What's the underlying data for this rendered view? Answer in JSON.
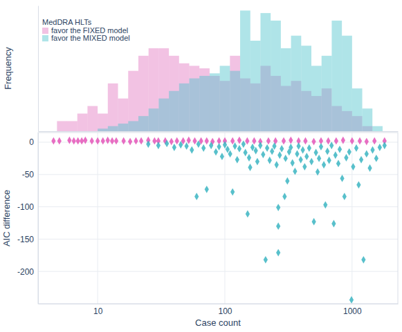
{
  "chart_data": [
    {
      "type": "histogram",
      "y_label": "Frequency",
      "legend_title": "MedDRA HLTs",
      "legend": "top-left",
      "log": "x",
      "tick_labels": false,
      "xlim": [
        3.4,
        2290
      ],
      "ylim": [
        0,
        50
      ],
      "bins": [
        4.79,
        5.75,
        6.92,
        8.32,
        10,
        12.02,
        14.45,
        17.38,
        20.89,
        25.12,
        30.2,
        36.31,
        43.65,
        52.48,
        63.1,
        75.86,
        91.2,
        109.6,
        131.8,
        158.5,
        190.5,
        229.1,
        275.4,
        331.1,
        398.1,
        478.6,
        575.4,
        691.8,
        831.8,
        1000,
        1202,
        1445,
        1738,
        2089
      ],
      "series": [
        {
          "name": "favor the FIXED model",
          "color": "#e377c2",
          "values": [
            4,
            4,
            7,
            10,
            7,
            19,
            13,
            24,
            30,
            33,
            33,
            30,
            27,
            26,
            25,
            22,
            20,
            30,
            21,
            19,
            26,
            22,
            18,
            20,
            16,
            14,
            17,
            10,
            8,
            6,
            2,
            0,
            0
          ]
        },
        {
          "name": "favor the MIXED model",
          "color": "#4ec3cc",
          "values": [
            0,
            0,
            0,
            0,
            1,
            2,
            3,
            4,
            6,
            9,
            13,
            16,
            19,
            21,
            22,
            23,
            26,
            24,
            48,
            36,
            47,
            44,
            33,
            38,
            34,
            26,
            30,
            44,
            38,
            17,
            9,
            2,
            0
          ]
        }
      ]
    },
    {
      "type": "scatter",
      "x_label": "Case count",
      "y_label": "AIC difference",
      "log": "x",
      "grid": true,
      "xlim": [
        3.4,
        2290
      ],
      "ylim": [
        -250,
        15
      ],
      "xticks": [
        10,
        100,
        1000
      ],
      "yticks": [
        0,
        -50,
        -100,
        -150,
        -200
      ],
      "series": [
        {
          "name": "favor the FIXED model",
          "color": "#e455b8",
          "marker": "diamond",
          "x": [
            4.5,
            5,
            6,
            6.5,
            7,
            7.5,
            8,
            9,
            10,
            11,
            12,
            13,
            14,
            16,
            18,
            20,
            22,
            25,
            28,
            30,
            34,
            38,
            42,
            47,
            52,
            58,
            65,
            72,
            80,
            90,
            100,
            115,
            130,
            150,
            170,
            190,
            220,
            250,
            290,
            330,
            380,
            430,
            500,
            570,
            650,
            750,
            850,
            1000,
            1150,
            1300,
            1500,
            1800
          ],
          "values": [
            2,
            2,
            3,
            2,
            2,
            2,
            3,
            2,
            2,
            2,
            3,
            2,
            2,
            2,
            1,
            2,
            2,
            3,
            2,
            2,
            2,
            1,
            2,
            2,
            3,
            2,
            2,
            2,
            1,
            2,
            2,
            2,
            3,
            2,
            2,
            1,
            2,
            2,
            2,
            3,
            2,
            2,
            1,
            2,
            2,
            2,
            3,
            2,
            2,
            1,
            2,
            2
          ]
        },
        {
          "name": "favor the MIXED model",
          "color": "#3bb5c2",
          "marker": "diamond",
          "x": [
            25,
            30,
            35,
            40,
            45,
            50,
            55,
            60,
            62,
            68,
            72,
            78,
            85,
            90,
            95,
            100,
            105,
            110,
            115,
            120,
            125,
            130,
            140,
            145,
            151,
            155,
            158,
            165,
            175,
            180,
            190,
            200,
            209,
            215,
            225,
            235,
            245,
            255,
            263,
            263,
            263,
            270,
            280,
            295,
            300,
            310,
            320,
            330,
            340,
            356,
            370,
            380,
            395,
            410,
            424,
            440,
            460,
            480,
            501,
            520,
            536,
            550,
            570,
            600,
            617,
            640,
            660,
            690,
            718,
            740,
            780,
            800,
            836,
            871,
            900,
            950,
            989,
            1020,
            1080,
            1127,
            1180,
            1230,
            1300,
            1380,
            1450,
            1550,
            1650,
            1800
          ],
          "values": [
            -3,
            -5,
            -2,
            -8,
            -4,
            -6,
            -12,
            -84,
            -3,
            -9,
            -73,
            -5,
            -15,
            -7,
            -22,
            -4,
            -11,
            -18,
            -77,
            -6,
            -27,
            -10,
            -3,
            -16,
            -111,
            -24,
            -39,
            -8,
            -13,
            -30,
            -5,
            -19,
            -182,
            -9,
            -28,
            -14,
            -6,
            -35,
            -171,
            -130,
            -101,
            -20,
            -10,
            -84,
            -25,
            -60,
            -15,
            -8,
            -32,
            -45,
            -18,
            -6,
            -27,
            -12,
            -38,
            -22,
            -9,
            -30,
            -123,
            -16,
            -46,
            -25,
            -7,
            -35,
            -97,
            -14,
            -28,
            -5,
            -126,
            -20,
            -33,
            -11,
            -56,
            -84,
            -24,
            -15,
            -244,
            -38,
            -9,
            -66,
            -27,
            -182,
            -18,
            -40,
            -12,
            -25,
            -8,
            -5
          ]
        }
      ]
    }
  ]
}
